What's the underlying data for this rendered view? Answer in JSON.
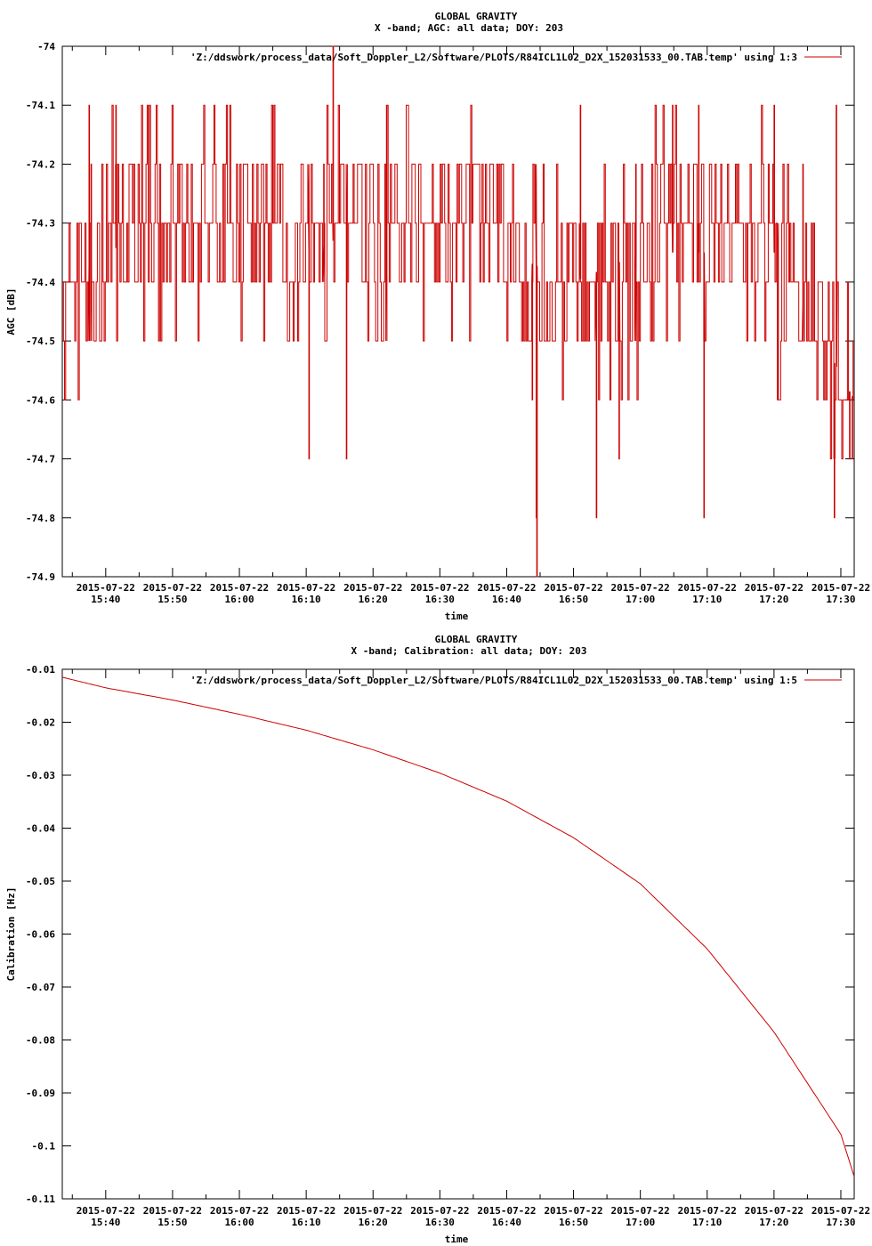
{
  "chart_data": [
    {
      "type": "line",
      "title": "GLOBAL GRAVITY",
      "subtitle": "X -band; AGC: all data; DOY: 203",
      "xlabel": "time",
      "ylabel": "AGC [dB]",
      "ylim": [
        -74.9,
        -74.0
      ],
      "yticks": [
        "-74",
        "-74.1",
        "-74.2",
        "-74.3",
        "-74.4",
        "-74.5",
        "-74.6",
        "-74.7",
        "-74.8",
        "-74.9"
      ],
      "ytick_values": [
        -74.0,
        -74.1,
        -74.2,
        -74.3,
        -74.4,
        -74.5,
        -74.6,
        -74.7,
        -74.8,
        -74.9
      ],
      "xtick_dates": [
        "2015-07-22",
        "2015-07-22",
        "2015-07-22",
        "2015-07-22",
        "2015-07-22",
        "2015-07-22",
        "2015-07-22",
        "2015-07-22",
        "2015-07-22",
        "2015-07-22",
        "2015-07-22",
        "2015-07-22"
      ],
      "xtick_times": [
        "15:40",
        "15:50",
        "16:00",
        "16:10",
        "16:20",
        "16:30",
        "16:40",
        "16:50",
        "17:00",
        "17:10",
        "17:20",
        "17:30"
      ],
      "xtick_minutes": [
        940,
        950,
        960,
        970,
        980,
        990,
        1000,
        1010,
        1020,
        1030,
        1040,
        1050
      ],
      "xlim_minutes": [
        933.5,
        1052
      ],
      "grid": false,
      "legend_position": "top-right",
      "series": [
        {
          "name": "'Z:/ddswork/process_data/Soft_Doppler_L2/Software/PLOTS/R84ICL1L02_D2X_152031533_00.TAB.temp' using 1:3",
          "color": "#cc0000",
          "x_minutes": [
            933.5,
            940,
            950,
            960,
            970,
            980,
            990,
            1000,
            1010,
            1020,
            1030,
            1040,
            1052
          ],
          "values": [
            -74.4,
            -74.35,
            -74.3,
            -74.35,
            -74.35,
            -74.3,
            -74.35,
            -74.35,
            -74.4,
            -74.35,
            -74.35,
            -74.35,
            -74.6
          ],
          "noise_step": 0.1,
          "spikes": [
            {
              "x_minute": 1004.5,
              "value": -74.9
            },
            {
              "x_minute": 1004.4,
              "value": -74.8
            },
            {
              "x_minute": 1003.8,
              "value": -74.6
            },
            {
              "x_minute": 974.0,
              "value": -74.0
            },
            {
              "x_minute": 972.6,
              "value": -74.2
            },
            {
              "x_minute": 982.0,
              "value": -74.1
            },
            {
              "x_minute": 1024.8,
              "value": -74.1
            },
            {
              "x_minute": 1040.0,
              "value": -74.1
            },
            {
              "x_minute": 1049.3,
              "value": -74.1
            },
            {
              "x_minute": 1044.3,
              "value": -74.2
            },
            {
              "x_minute": 1049.0,
              "value": -74.8
            },
            {
              "x_minute": 1029.5,
              "value": -74.8
            },
            {
              "x_minute": 1028.7,
              "value": -74.1
            },
            {
              "x_minute": 1011.0,
              "value": -74.1
            },
            {
              "x_minute": 1013.4,
              "value": -74.8
            },
            {
              "x_minute": 976.0,
              "value": -74.7
            },
            {
              "x_minute": 970.4,
              "value": -74.7
            },
            {
              "x_minute": 937.5,
              "value": -74.1
            },
            {
              "x_minute": 937.8,
              "value": -74.2
            },
            {
              "x_minute": 941.5,
              "value": -74.1
            },
            {
              "x_minute": 1019.3,
              "value": -74.2
            },
            {
              "x_minute": 1016.8,
              "value": -74.7
            },
            {
              "x_minute": 1040.5,
              "value": -74.6
            },
            {
              "x_minute": 1051.3,
              "value": -74.7
            },
            {
              "x_minute": 1051.7,
              "value": -74.7
            }
          ]
        }
      ]
    },
    {
      "type": "line",
      "title": "GLOBAL GRAVITY",
      "subtitle": "X -band; Calibration: all data; DOY: 203",
      "xlabel": "time",
      "ylabel": "Calibration [Hz]",
      "ylim": [
        -0.11,
        -0.01
      ],
      "yticks": [
        "-0.01",
        "-0.02",
        "-0.03",
        "-0.04",
        "-0.05",
        "-0.06",
        "-0.07",
        "-0.08",
        "-0.09",
        "-0.1",
        "-0.11"
      ],
      "ytick_values": [
        -0.01,
        -0.02,
        -0.03,
        -0.04,
        -0.05,
        -0.06,
        -0.07,
        -0.08,
        -0.09,
        -0.1,
        -0.11
      ],
      "xtick_dates": [
        "2015-07-22",
        "2015-07-22",
        "2015-07-22",
        "2015-07-22",
        "2015-07-22",
        "2015-07-22",
        "2015-07-22",
        "2015-07-22",
        "2015-07-22",
        "2015-07-22",
        "2015-07-22",
        "2015-07-22"
      ],
      "xtick_times": [
        "15:40",
        "15:50",
        "16:00",
        "16:10",
        "16:20",
        "16:30",
        "16:40",
        "16:50",
        "17:00",
        "17:10",
        "17:20",
        "17:30"
      ],
      "xtick_minutes": [
        940,
        950,
        960,
        970,
        980,
        990,
        1000,
        1010,
        1020,
        1030,
        1040,
        1050
      ],
      "xlim_minutes": [
        933.5,
        1052
      ],
      "grid": false,
      "legend_position": "top-right",
      "series": [
        {
          "name": "'Z:/ddswork/process_data/Soft_Doppler_L2/Software/PLOTS/R84ICL1L02_D2X_152031533_00.TAB.temp' using 1:5",
          "color": "#cc0000",
          "x_minutes": [
            933.5,
            940,
            950,
            960,
            970,
            980,
            990,
            1000,
            1010,
            1020,
            1030,
            1040,
            1050,
            1052
          ],
          "values": [
            -0.0115,
            -0.0135,
            -0.0158,
            -0.0185,
            -0.0215,
            -0.0252,
            -0.0296,
            -0.0349,
            -0.0418,
            -0.0505,
            -0.0628,
            -0.0785,
            -0.0978,
            -0.1058
          ]
        }
      ]
    }
  ]
}
